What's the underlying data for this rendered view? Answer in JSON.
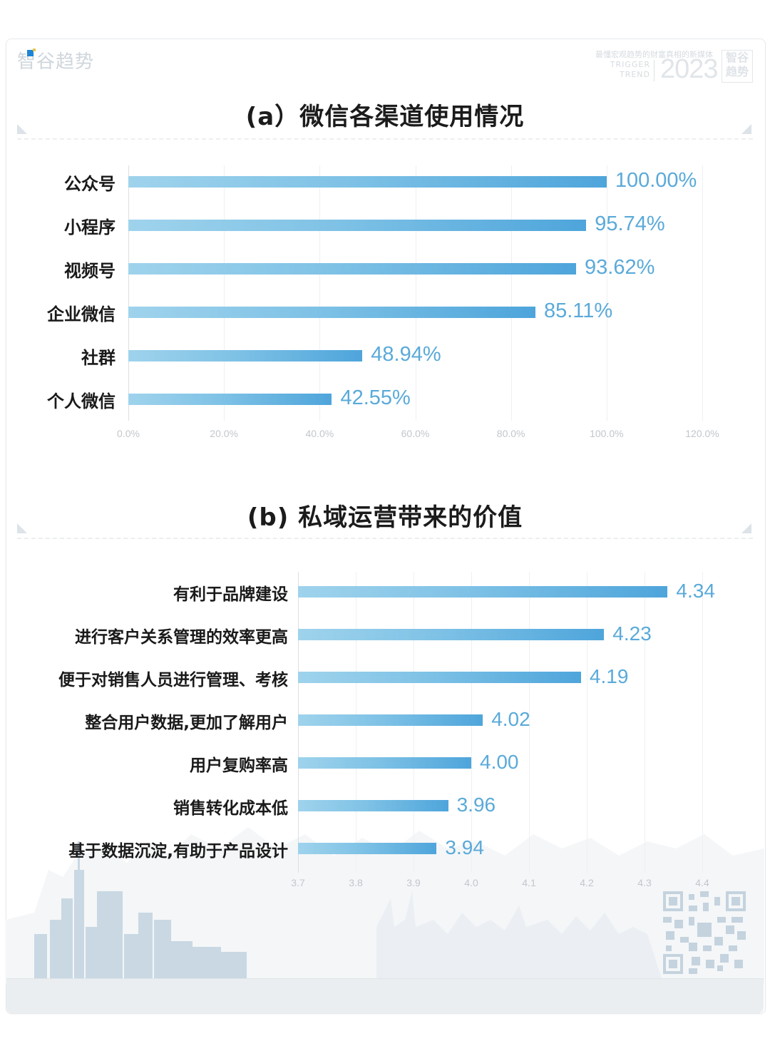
{
  "brand": {
    "name": "智谷趋势",
    "slogan": "最懂宏观趋势的财富真相的新媒体",
    "en_line1": "TRIGGER",
    "en_line2": "TREND",
    "year": "2023",
    "logo_line1": "智谷",
    "logo_line2": "趋势",
    "accent_color": "#1f84d6"
  },
  "colors": {
    "bar_start": "#9fd3ec",
    "bar_end": "#4ea5db",
    "value_label": "#5aaad9",
    "tick_label": "#c2c7cc",
    "title": "#1b1b1b"
  },
  "chart_data": [
    {
      "type": "bar",
      "orientation": "horizontal",
      "title": "(a）微信各渠道使用情况",
      "categories": [
        "公众号",
        "小程序",
        "视频号",
        "企业微信",
        "社群",
        "个人微信"
      ],
      "values": [
        100.0,
        95.74,
        93.62,
        85.11,
        48.94,
        42.55
      ],
      "value_labels": [
        "100.00%",
        "95.74%",
        "93.62%",
        "85.11%",
        "48.94%",
        "42.55%"
      ],
      "xlabel": "",
      "ylabel": "",
      "xlim": [
        0,
        120
      ],
      "x_ticks": [
        "0.0%",
        "20.0%",
        "40.0%",
        "60.0%",
        "80.0%",
        "100.0%",
        "120.0%"
      ],
      "grid": true,
      "legend": null
    },
    {
      "type": "bar",
      "orientation": "horizontal",
      "title": "(b) 私域运营带来的价值",
      "categories": [
        "有利于品牌建设",
        "进行客户关系管理的效率更高",
        "便于对销售人员进行管理、考核",
        "整合用户数据,更加了解用户",
        "用户复购率高",
        "销售转化成本低",
        "基于数据沉淀,有助于产品设计"
      ],
      "values": [
        4.34,
        4.23,
        4.19,
        4.02,
        4.0,
        3.96,
        3.94
      ],
      "value_labels": [
        "4.34",
        "4.23",
        "4.19",
        "4.02",
        "4.00",
        "3.96",
        "3.94"
      ],
      "xlabel": "",
      "ylabel": "",
      "xlim": [
        3.7,
        4.4
      ],
      "x_ticks": [
        "3.7",
        "3.8",
        "3.9",
        "4.0",
        "4.1",
        "4.2",
        "4.3",
        "4.4"
      ],
      "grid": true,
      "legend": null
    }
  ]
}
